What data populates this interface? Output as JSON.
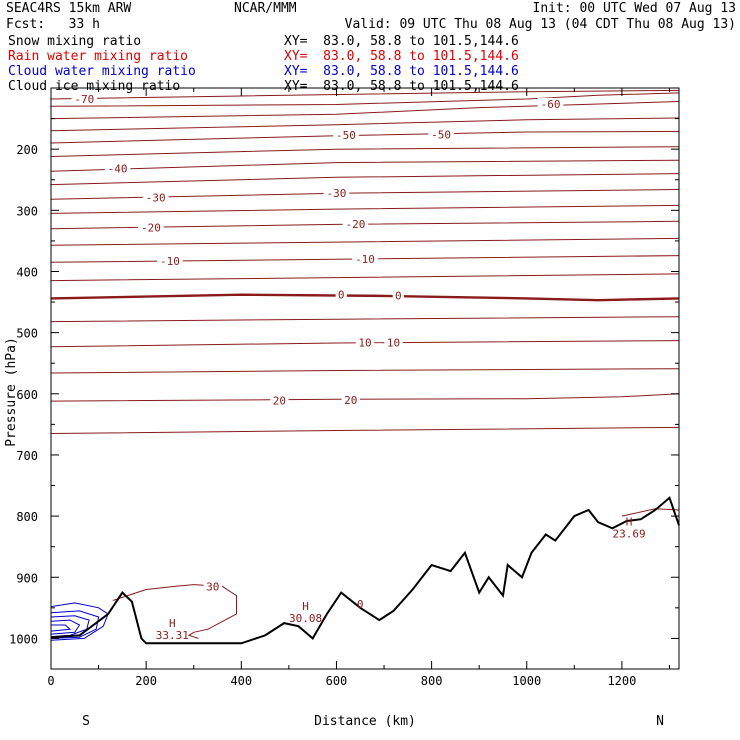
{
  "header": {
    "model": "SEAC4RS 15km ARW",
    "org": "NCAR/MMM",
    "init": "Init: 00 UTC Wed 07 Aug 13",
    "fcst": "Fcst:   33 h",
    "valid": "Valid: 09 UTC Thu 08 Aug 13 (04 CDT Thu 08 Aug 13)"
  },
  "fields": [
    {
      "name": "Snow mixing ratio",
      "xy": "XY=  83.0, 58.8 to 101.5,144.6",
      "color": "#000000"
    },
    {
      "name": "Rain water mixing ratio",
      "xy": "XY=  83.0, 58.8 to 101.5,144.6",
      "color": "#e00000"
    },
    {
      "name": "Cloud water mixing ratio",
      "xy": "XY=  83.0, 58.8 to 101.5,144.6",
      "color": "#0000d0"
    },
    {
      "name": "Cloud ice mixing ratio",
      "xy": "XY=  83.0, 58.8 to 101.5,144.6",
      "color": "#000000"
    }
  ],
  "colors": {
    "isotherm": "#8b1a1a",
    "terrain": "#000000",
    "cloud_water": "#0000d0"
  },
  "chart_data": {
    "type": "line",
    "xlabel": "Distance (km)",
    "ylabel": "Pressure (hPa)",
    "xlim": [
      0,
      1320
    ],
    "ylim": [
      1050,
      100
    ],
    "x_ticks": [
      0,
      200,
      400,
      600,
      800,
      1000,
      1200
    ],
    "y_ticks": [
      200,
      300,
      400,
      500,
      600,
      700,
      800,
      900,
      1000
    ],
    "x_end_labels": {
      "left": "S",
      "right": "N"
    },
    "temperature_contours": [
      {
        "value": -70,
        "label": "-70",
        "p": [
          [
            0,
            118
          ],
          [
            400,
            113
          ],
          [
            1000,
            106
          ],
          [
            1320,
            104
          ]
        ],
        "labels": [
          [
            70,
            118
          ]
        ]
      },
      {
        "value": -65,
        "p": [
          [
            0,
            130
          ],
          [
            600,
            127
          ],
          [
            1000,
            118
          ],
          [
            1150,
            112
          ],
          [
            1320,
            108
          ]
        ],
        "labels": []
      },
      {
        "value": -60,
        "label": "-60",
        "p": [
          [
            0,
            150
          ],
          [
            600,
            143
          ],
          [
            900,
            132
          ],
          [
            1320,
            122
          ]
        ],
        "labels": [
          [
            1050,
            126
          ]
        ]
      },
      {
        "value": -55,
        "p": [
          [
            0,
            170
          ],
          [
            600,
            160
          ],
          [
            1000,
            152
          ],
          [
            1320,
            149
          ]
        ],
        "labels": []
      },
      {
        "value": -50,
        "label": "-50",
        "p": [
          [
            0,
            190
          ],
          [
            600,
            178
          ],
          [
            1000,
            172
          ],
          [
            1320,
            171
          ]
        ],
        "labels": [
          [
            620,
            177
          ],
          [
            820,
            176
          ]
        ]
      },
      {
        "value": -45,
        "p": [
          [
            0,
            212
          ],
          [
            600,
            200
          ],
          [
            1320,
            196
          ]
        ],
        "labels": []
      },
      {
        "value": -40,
        "label": "-40",
        "p": [
          [
            0,
            236
          ],
          [
            600,
            222
          ],
          [
            1320,
            218
          ]
        ],
        "labels": [
          [
            140,
            232
          ]
        ]
      },
      {
        "value": -35,
        "p": [
          [
            0,
            258
          ],
          [
            600,
            246
          ],
          [
            1320,
            240
          ]
        ],
        "labels": []
      },
      {
        "value": -30,
        "label": "-30",
        "p": [
          [
            0,
            282
          ],
          [
            600,
            272
          ],
          [
            1320,
            266
          ]
        ],
        "labels": [
          [
            220,
            279
          ],
          [
            600,
            272
          ]
        ]
      },
      {
        "value": -25,
        "p": [
          [
            0,
            305
          ],
          [
            600,
            298
          ],
          [
            1320,
            292
          ]
        ],
        "labels": []
      },
      {
        "value": -20,
        "label": "-20",
        "p": [
          [
            0,
            330
          ],
          [
            600,
            323
          ],
          [
            1320,
            318
          ]
        ],
        "labels": [
          [
            210,
            328
          ],
          [
            640,
            322
          ]
        ]
      },
      {
        "value": -15,
        "p": [
          [
            0,
            357
          ],
          [
            600,
            352
          ],
          [
            1320,
            346
          ]
        ],
        "labels": []
      },
      {
        "value": -10,
        "label": "-10",
        "p": [
          [
            0,
            385
          ],
          [
            600,
            380
          ],
          [
            1320,
            374
          ]
        ],
        "labels": [
          [
            250,
            383
          ],
          [
            660,
            380
          ]
        ]
      },
      {
        "value": -5,
        "p": [
          [
            0,
            415
          ],
          [
            600,
            410
          ],
          [
            1320,
            404
          ]
        ],
        "labels": []
      },
      {
        "value": 0,
        "label": "0",
        "bold": true,
        "p": [
          [
            0,
            444
          ],
          [
            400,
            438
          ],
          [
            700,
            440
          ],
          [
            1000,
            444
          ],
          [
            1150,
            447
          ],
          [
            1320,
            444
          ]
        ],
        "labels": [
          [
            610,
            438
          ],
          [
            730,
            439
          ]
        ]
      },
      {
        "value": 5,
        "p": [
          [
            0,
            482
          ],
          [
            600,
            478
          ],
          [
            1320,
            474
          ]
        ],
        "labels": []
      },
      {
        "value": 10,
        "label": "10",
        "p": [
          [
            0,
            523
          ],
          [
            600,
            517
          ],
          [
            1320,
            513
          ]
        ],
        "labels": [
          [
            660,
            516
          ],
          [
            720,
            516
          ]
        ]
      },
      {
        "value": 15,
        "p": [
          [
            0,
            566
          ],
          [
            600,
            562
          ],
          [
            1320,
            559
          ]
        ],
        "labels": []
      },
      {
        "value": 20,
        "label": "20",
        "p": [
          [
            0,
            612
          ],
          [
            600,
            609
          ],
          [
            1000,
            608
          ],
          [
            1200,
            605
          ],
          [
            1320,
            600
          ]
        ],
        "labels": [
          [
            480,
            611
          ],
          [
            630,
            610
          ]
        ]
      },
      {
        "value": 25,
        "p": [
          [
            0,
            665
          ],
          [
            600,
            660
          ],
          [
            1320,
            655
          ]
        ],
        "labels": []
      }
    ],
    "terrain_profile": [
      [
        0,
        998
      ],
      [
        60,
        995
      ],
      [
        120,
        960
      ],
      [
        150,
        925
      ],
      [
        170,
        940
      ],
      [
        190,
        1000
      ],
      [
        200,
        1008
      ],
      [
        400,
        1008
      ],
      [
        450,
        995
      ],
      [
        490,
        975
      ],
      [
        520,
        980
      ],
      [
        550,
        1000
      ],
      [
        580,
        960
      ],
      [
        610,
        925
      ],
      [
        650,
        950
      ],
      [
        690,
        970
      ],
      [
        720,
        955
      ],
      [
        760,
        920
      ],
      [
        800,
        880
      ],
      [
        840,
        890
      ],
      [
        870,
        860
      ],
      [
        900,
        925
      ],
      [
        920,
        900
      ],
      [
        950,
        930
      ],
      [
        960,
        880
      ],
      [
        990,
        900
      ],
      [
        1010,
        860
      ],
      [
        1040,
        830
      ],
      [
        1060,
        840
      ],
      [
        1100,
        800
      ],
      [
        1130,
        790
      ],
      [
        1150,
        810
      ],
      [
        1180,
        820
      ],
      [
        1210,
        808
      ],
      [
        1240,
        805
      ],
      [
        1270,
        790
      ],
      [
        1300,
        770
      ],
      [
        1320,
        815
      ]
    ],
    "extra_contours": [
      {
        "label": "30",
        "p": [
          [
            130,
            938
          ],
          [
            200,
            920
          ],
          [
            260,
            915
          ],
          [
            300,
            912
          ],
          [
            360,
            915
          ],
          [
            390,
            930
          ],
          [
            390,
            960
          ],
          [
            330,
            985
          ],
          [
            300,
            990
          ],
          [
            290,
            995
          ],
          [
            310,
            1000
          ]
        ],
        "labels": [
          [
            340,
            915
          ]
        ]
      },
      {
        "label": "30",
        "p": [
          [
            1200,
            800
          ],
          [
            1270,
            788
          ],
          [
            1320,
            790
          ]
        ],
        "labels": []
      }
    ],
    "cloud_water_contours": [
      [
        [
          0,
          948
        ],
        [
          50,
          942
        ],
        [
          100,
          950
        ],
        [
          120,
          960
        ],
        [
          110,
          980
        ],
        [
          70,
          1000
        ],
        [
          0,
          1003
        ]
      ],
      [
        [
          0,
          958
        ],
        [
          60,
          955
        ],
        [
          100,
          965
        ],
        [
          95,
          985
        ],
        [
          60,
          998
        ],
        [
          0,
          1000
        ]
      ],
      [
        [
          0,
          965
        ],
        [
          50,
          963
        ],
        [
          80,
          970
        ],
        [
          75,
          985
        ],
        [
          40,
          995
        ],
        [
          0,
          997
        ]
      ],
      [
        [
          0,
          972
        ],
        [
          40,
          970
        ],
        [
          60,
          978
        ],
        [
          50,
          990
        ],
        [
          0,
          993
        ]
      ],
      [
        [
          0,
          978
        ],
        [
          30,
          978
        ],
        [
          40,
          985
        ],
        [
          0,
          988
        ]
      ]
    ],
    "annotations": [
      {
        "type": "H",
        "label": "H",
        "value": "33.31",
        "x": 255,
        "p": 988
      },
      {
        "type": "H",
        "label": "H",
        "value": "30.08",
        "x": 535,
        "p": 960
      },
      {
        "type": "H",
        "label": "H",
        "value": "23.69",
        "x": 1215,
        "p": 822
      },
      {
        "type": "label",
        "label": "0",
        "x": 650,
        "p": 950
      }
    ]
  }
}
